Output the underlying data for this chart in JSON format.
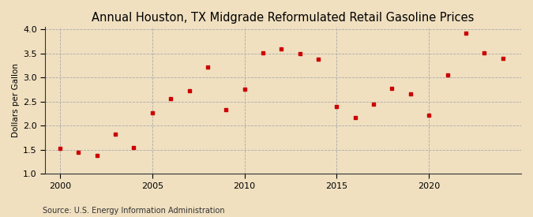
{
  "title": "Annual Houston, TX Midgrade Reformulated Retail Gasoline Prices",
  "ylabel": "Dollars per Gallon",
  "source": "Source: U.S. Energy Information Administration",
  "background_color": "#f0e0c0",
  "plot_background_color": "#f0e0c0",
  "marker_color": "#cc0000",
  "years": [
    2000,
    2001,
    2002,
    2003,
    2004,
    2005,
    2006,
    2007,
    2008,
    2009,
    2010,
    2011,
    2012,
    2013,
    2014,
    2015,
    2016,
    2017,
    2018,
    2019,
    2020,
    2021,
    2022,
    2023,
    2024
  ],
  "values": [
    1.53,
    1.44,
    1.38,
    1.82,
    1.55,
    2.27,
    2.56,
    2.73,
    3.22,
    2.33,
    2.76,
    3.51,
    3.59,
    3.5,
    3.38,
    2.4,
    2.16,
    2.44,
    2.78,
    2.65,
    2.22,
    3.05,
    3.91,
    3.51,
    3.39
  ],
  "xlim": [
    1999.2,
    2025
  ],
  "ylim": [
    1.0,
    4.05
  ],
  "xticks": [
    2000,
    2005,
    2010,
    2015,
    2020
  ],
  "yticks": [
    1.0,
    1.5,
    2.0,
    2.5,
    3.0,
    3.5,
    4.0
  ],
  "title_fontsize": 10.5,
  "label_fontsize": 7.5,
  "tick_fontsize": 8,
  "source_fontsize": 7
}
